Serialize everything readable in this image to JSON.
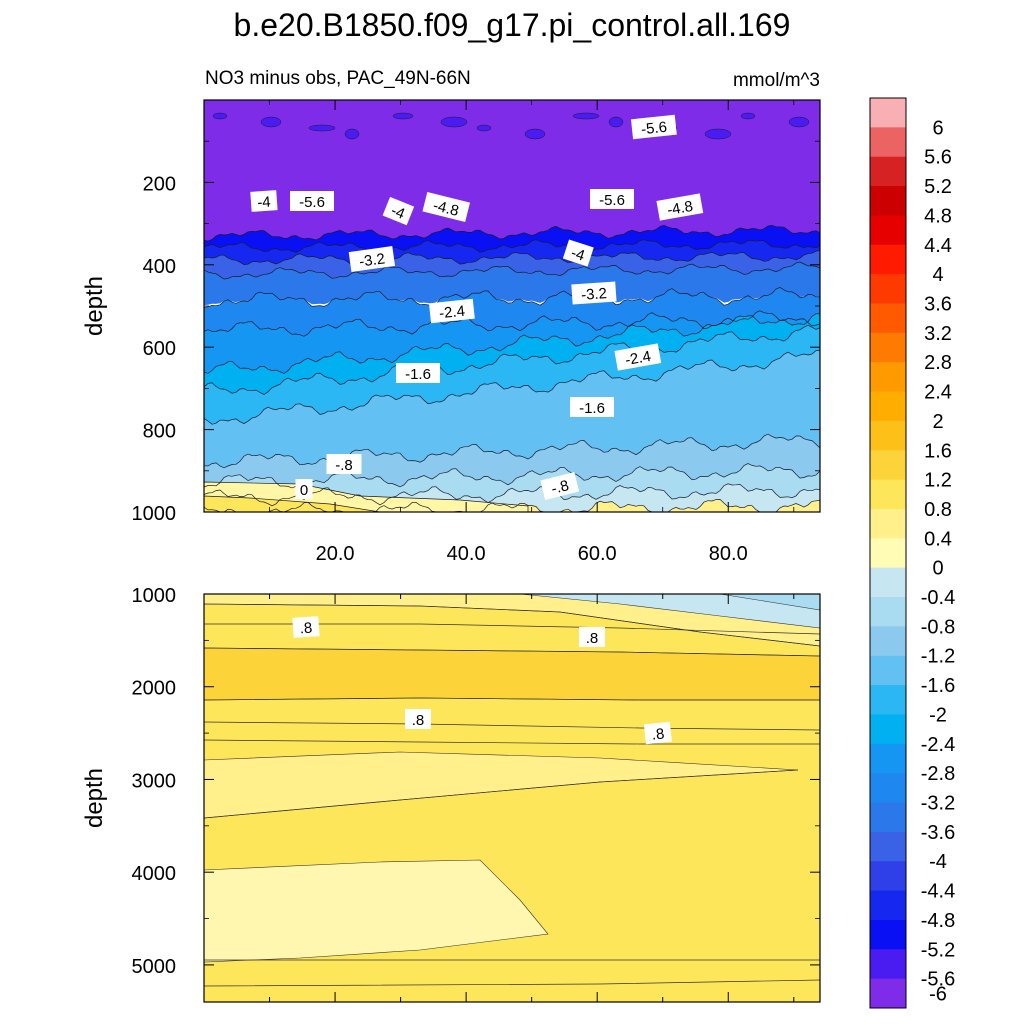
{
  "chart_data": {
    "type": "contour",
    "title": "b.e20.B1850.f09_g17.pi_control.all.169",
    "subtitle_left": "NO3 minus obs, PAC_49N-66N",
    "subtitle_right": "mmol/m^3",
    "ylabel": "depth",
    "colorbar": {
      "labels": [
        "6",
        "5.6",
        "5.2",
        "4.8",
        "4.4",
        "4",
        "3.6",
        "3.2",
        "2.8",
        "2.4",
        "2",
        "1.6",
        "1.2",
        "0.8",
        "0.4",
        "0",
        "-0.4",
        "-0.8",
        "-1.2",
        "-1.6",
        "-2",
        "-2.4",
        "-2.8",
        "-3.2",
        "-3.6",
        "-4",
        "-4.4",
        "-4.8",
        "-5.2",
        "-5.6",
        "-6"
      ],
      "colors": [
        "#f8b0b4",
        "#ec6363",
        "#d62222",
        "#cc0000",
        "#e60000",
        "#ff1a00",
        "#ff3a00",
        "#ff5a00",
        "#ff7a00",
        "#ff9a00",
        "#ffae00",
        "#fcc018",
        "#fcd338",
        "#fde65a",
        "#fff08c",
        "#fffcb6",
        "#c6e6f2",
        "#a9dcf0",
        "#8bcaee",
        "#62c0f2",
        "#2ab7f4",
        "#00b0f0",
        "#1496f2",
        "#1e88f0",
        "#2a78ea",
        "#3a62e6",
        "#2f40e8",
        "#1628f0",
        "#0a10f4",
        "#4a1cf2",
        "#7f2ce8"
      ]
    },
    "top_panel": {
      "y_range": [
        0,
        1000
      ],
      "x_range": [
        0,
        94
      ],
      "y_ticks": [
        "200",
        "400",
        "600",
        "800",
        "1000"
      ],
      "x_ticks": [
        "20.0",
        "40.0",
        "60.0",
        "80.0"
      ],
      "contour_labels": [
        "-5.6",
        "-4",
        "-5.6",
        "-4",
        "-4.8",
        "-5.6",
        "-4.8",
        "-3.2",
        "-4",
        "-3.2",
        "-2.4",
        "-2.4",
        "-1.6",
        "-1.6",
        "-.8",
        "-.8",
        "0"
      ]
    },
    "bottom_panel": {
      "y_range": [
        1000,
        5400
      ],
      "x_range": [
        0,
        94
      ],
      "y_ticks": [
        "1000",
        "2000",
        "3000",
        "4000",
        "5000"
      ],
      "contour_labels": [
        ".8",
        ".8",
        ".8",
        ".8"
      ]
    }
  }
}
